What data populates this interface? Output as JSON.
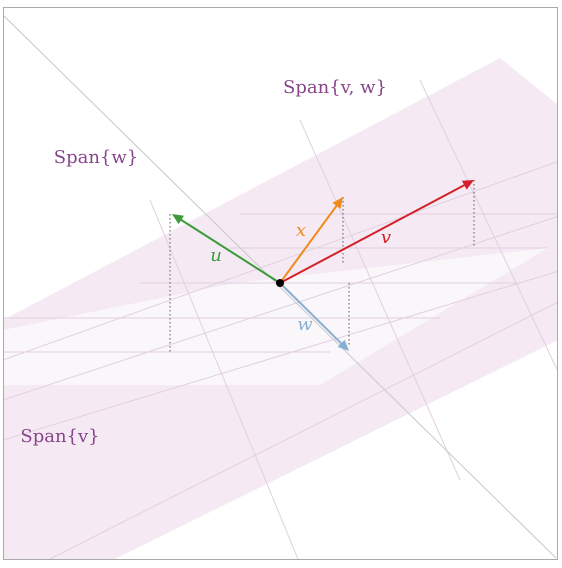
{
  "regions": [
    {
      "label": "Span{v, w}"
    },
    {
      "label": "Span{w}"
    },
    {
      "label": "Span{v}"
    }
  ],
  "vectors": [
    {
      "label": "u",
      "color": "#3c9a3c"
    },
    {
      "label": "x",
      "color": "#f08a1c"
    },
    {
      "label": "v",
      "color": "#d42028"
    },
    {
      "label": "w",
      "color": "#88afd0"
    }
  ]
}
